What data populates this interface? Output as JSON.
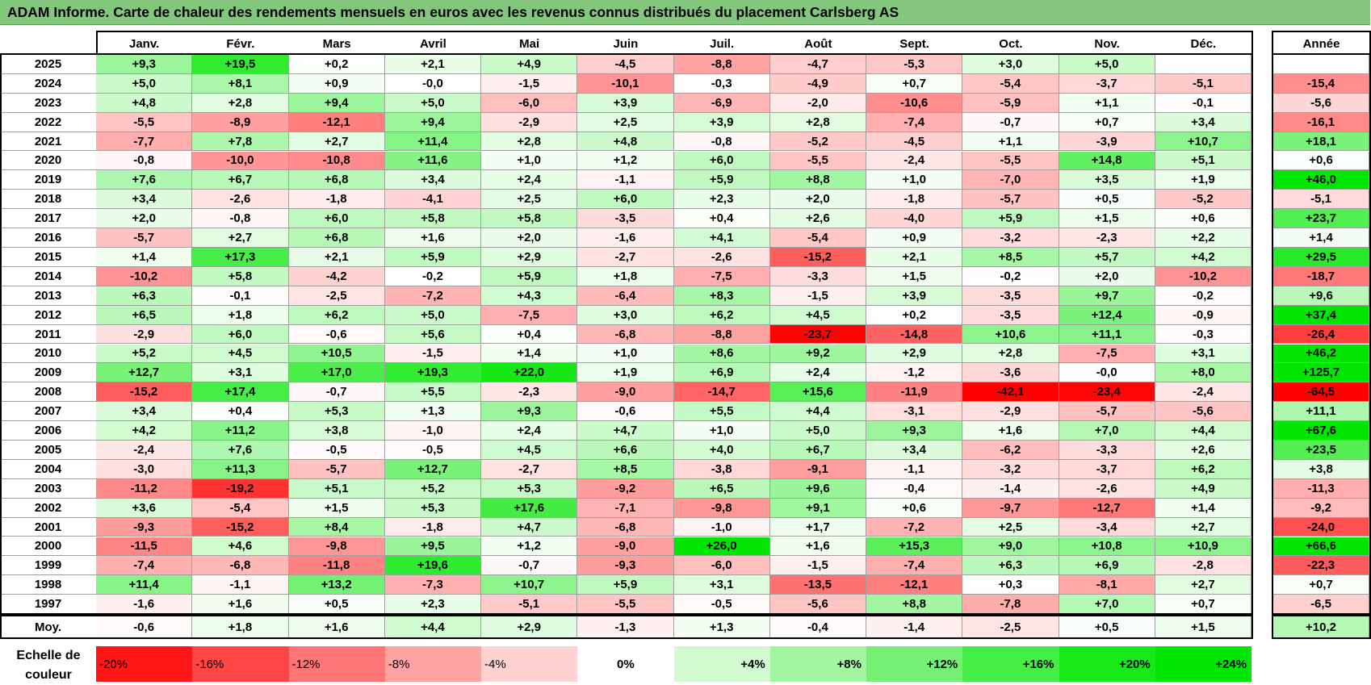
{
  "title": "ADAM Informe. Carte de chaleur des rendements mensuels en euros avec les revenus connus distribués du placement Carlsberg AS",
  "chart_data": {
    "type": "heatmap",
    "columns": [
      "Janv.",
      "Févr.",
      "Mars",
      "Avril",
      "Mai",
      "Juin",
      "Juil.",
      "Août",
      "Sept.",
      "Oct.",
      "Nov.",
      "Déc."
    ],
    "year_column": "Année",
    "rows": [
      {
        "year": "2025",
        "months": [
          "+9,3",
          "+19,5",
          "+0,2",
          "+2,1",
          "+4,9",
          "-4,5",
          "-8,8",
          "-4,7",
          "-5,3",
          "+3,0",
          "+5,0",
          ""
        ],
        "annual": ""
      },
      {
        "year": "2024",
        "months": [
          "+5,0",
          "+8,1",
          "+0,9",
          "-0,0",
          "-1,5",
          "-10,1",
          "-0,3",
          "-4,9",
          "+0,7",
          "-5,4",
          "-3,7",
          "-5,1"
        ],
        "annual": "-15,4"
      },
      {
        "year": "2023",
        "months": [
          "+4,8",
          "+2,8",
          "+9,4",
          "+5,0",
          "-6,0",
          "+3,9",
          "-6,9",
          "-2,0",
          "-10,6",
          "-5,9",
          "+1,1",
          "-0,1"
        ],
        "annual": "-5,6"
      },
      {
        "year": "2022",
        "months": [
          "-5,5",
          "-8,9",
          "-12,1",
          "+9,4",
          "-2,9",
          "+2,5",
          "+3,9",
          "+2,8",
          "-7,4",
          "-0,7",
          "+0,7",
          "+3,4"
        ],
        "annual": "-16,1"
      },
      {
        "year": "2021",
        "months": [
          "-7,7",
          "+7,8",
          "+2,7",
          "+11,4",
          "+2,8",
          "+4,8",
          "-0,8",
          "-5,2",
          "-4,5",
          "+1,1",
          "-3,9",
          "+10,7"
        ],
        "annual": "+18,1"
      },
      {
        "year": "2020",
        "months": [
          "-0,8",
          "-10,0",
          "-10,8",
          "+11,6",
          "+1,0",
          "+1,2",
          "+6,0",
          "-5,5",
          "-2,4",
          "-5,5",
          "+14,8",
          "+5,1"
        ],
        "annual": "+0,6"
      },
      {
        "year": "2019",
        "months": [
          "+7,6",
          "+6,7",
          "+6,8",
          "+3,4",
          "+2,4",
          "-1,1",
          "+5,9",
          "+8,8",
          "+1,0",
          "-7,0",
          "+3,5",
          "+1,9"
        ],
        "annual": "+46,0"
      },
      {
        "year": "2018",
        "months": [
          "+3,4",
          "-2,6",
          "-1,8",
          "-4,1",
          "+2,5",
          "+6,0",
          "+2,3",
          "+2,0",
          "-1,8",
          "-5,7",
          "+0,5",
          "-5,2"
        ],
        "annual": "-5,1"
      },
      {
        "year": "2017",
        "months": [
          "+2,0",
          "-0,8",
          "+6,0",
          "+5,8",
          "+5,8",
          "-3,5",
          "+0,4",
          "+2,6",
          "-4,0",
          "+5,9",
          "+1,5",
          "+0,6"
        ],
        "annual": "+23,7"
      },
      {
        "year": "2016",
        "months": [
          "-5,7",
          "+2,7",
          "+6,8",
          "+1,6",
          "+2,0",
          "-1,6",
          "+4,1",
          "-5,4",
          "+0,9",
          "-3,2",
          "-2,3",
          "+2,2"
        ],
        "annual": "+1,4"
      },
      {
        "year": "2015",
        "months": [
          "+1,4",
          "+17,3",
          "+2,1",
          "+5,9",
          "+2,9",
          "-2,7",
          "-2,6",
          "-15,2",
          "+2,1",
          "+8,5",
          "+5,7",
          "+4,2"
        ],
        "annual": "+29,5"
      },
      {
        "year": "2014",
        "months": [
          "-10,2",
          "+5,8",
          "-4,2",
          "-0,2",
          "+5,9",
          "+1,8",
          "-7,5",
          "-3,3",
          "+1,5",
          "-0,2",
          "+2,0",
          "-10,2"
        ],
        "annual": "-18,7"
      },
      {
        "year": "2013",
        "months": [
          "+6,3",
          "-0,1",
          "-2,5",
          "-7,2",
          "+4,3",
          "-6,4",
          "+8,3",
          "-1,5",
          "+3,9",
          "-3,5",
          "+9,7",
          "-0,2"
        ],
        "annual": "+9,6"
      },
      {
        "year": "2012",
        "months": [
          "+6,5",
          "+1,8",
          "+6,2",
          "+5,0",
          "-7,5",
          "+3,0",
          "+6,2",
          "+4,5",
          "+0,2",
          "-3,5",
          "+12,4",
          "-0,9"
        ],
        "annual": "+37,4"
      },
      {
        "year": "2011",
        "months": [
          "-2,9",
          "+6,0",
          "-0,6",
          "+5,6",
          "+0,4",
          "-6,8",
          "-8,8",
          "-23,7",
          "-14,8",
          "+10,6",
          "+11,1",
          "-0,3"
        ],
        "annual": "-26,4"
      },
      {
        "year": "2010",
        "months": [
          "+5,2",
          "+4,5",
          "+10,5",
          "-1,5",
          "+1,4",
          "+1,0",
          "+8,6",
          "+9,2",
          "+2,9",
          "+2,8",
          "-7,5",
          "+3,1"
        ],
        "annual": "+46,2"
      },
      {
        "year": "2009",
        "months": [
          "+12,7",
          "+3,1",
          "+17,0",
          "+19,3",
          "+22,0",
          "+1,9",
          "+6,9",
          "+2,4",
          "-1,2",
          "-3,6",
          "-0,0",
          "+8,0"
        ],
        "annual": "+125,7"
      },
      {
        "year": "2008",
        "months": [
          "-15,2",
          "+17,4",
          "-0,7",
          "+5,5",
          "-2,3",
          "-9,0",
          "-14,7",
          "+15,6",
          "-11,9",
          "-42,1",
          "-23,4",
          "-2,4"
        ],
        "annual": "-64,5"
      },
      {
        "year": "2007",
        "months": [
          "+3,4",
          "+0,4",
          "+5,3",
          "+1,3",
          "+9,3",
          "-0,6",
          "+5,5",
          "+4,4",
          "-3,1",
          "-2,9",
          "-5,7",
          "-5,6"
        ],
        "annual": "+11,1"
      },
      {
        "year": "2006",
        "months": [
          "+4,2",
          "+11,2",
          "+3,8",
          "-1,0",
          "+2,4",
          "+4,7",
          "+1,0",
          "+5,0",
          "+9,3",
          "+1,6",
          "+7,0",
          "+4,4"
        ],
        "annual": "+67,6"
      },
      {
        "year": "2005",
        "months": [
          "-2,4",
          "+7,6",
          "-0,5",
          "-0,5",
          "+4,5",
          "+6,6",
          "+4,0",
          "+6,7",
          "+3,4",
          "-6,2",
          "-3,3",
          "+2,6"
        ],
        "annual": "+23,5"
      },
      {
        "year": "2004",
        "months": [
          "-3,0",
          "+11,3",
          "-5,7",
          "+12,7",
          "-2,7",
          "+8,5",
          "-3,8",
          "-9,1",
          "-1,1",
          "-3,2",
          "-3,7",
          "+6,2"
        ],
        "annual": "+3,8"
      },
      {
        "year": "2003",
        "months": [
          "-11,2",
          "-19,2",
          "+5,1",
          "+5,2",
          "+5,3",
          "-9,2",
          "+6,5",
          "+9,6",
          "-0,4",
          "-1,4",
          "-2,6",
          "+4,9"
        ],
        "annual": "-11,3"
      },
      {
        "year": "2002",
        "months": [
          "+3,6",
          "-5,4",
          "+1,5",
          "+5,3",
          "+17,6",
          "-7,1",
          "-9,8",
          "+9,1",
          "+0,6",
          "-9,7",
          "-12,7",
          "+1,4"
        ],
        "annual": "-9,2"
      },
      {
        "year": "2001",
        "months": [
          "-9,3",
          "-15,2",
          "+8,4",
          "-1,8",
          "+4,7",
          "-6,8",
          "-1,0",
          "+1,7",
          "-7,2",
          "+2,5",
          "-3,4",
          "+2,7"
        ],
        "annual": "-24,0"
      },
      {
        "year": "2000",
        "months": [
          "-11,5",
          "+4,6",
          "-9,8",
          "+9,5",
          "+1,2",
          "-9,0",
          "+26,0",
          "+1,6",
          "+15,3",
          "+9,0",
          "+10,8",
          "+10,9"
        ],
        "annual": "+66,6"
      },
      {
        "year": "1999",
        "months": [
          "-7,4",
          "-6,8",
          "-11,8",
          "+19,6",
          "-0,7",
          "-9,3",
          "-6,0",
          "-1,5",
          "-7,4",
          "+6,3",
          "+6,9",
          "-2,8"
        ],
        "annual": "-22,3"
      },
      {
        "year": "1998",
        "months": [
          "+11,4",
          "-1,1",
          "+13,2",
          "-7,3",
          "+10,7",
          "+5,9",
          "+3,1",
          "-13,5",
          "-12,1",
          "+0,3",
          "-8,1",
          "+2,7"
        ],
        "annual": "+0,7"
      },
      {
        "year": "1997",
        "months": [
          "-1,6",
          "+1,6",
          "+0,5",
          "+2,3",
          "-5,1",
          "-5,5",
          "-0,5",
          "-5,6",
          "+8,8",
          "-7,8",
          "+7,0",
          "+0,7"
        ],
        "annual": "-6,5"
      }
    ],
    "average": {
      "label": "Moy.",
      "months": [
        "-0,6",
        "+1,8",
        "+1,6",
        "+4,4",
        "+2,9",
        "-1,3",
        "+1,3",
        "-0,4",
        "-1,4",
        "-2,5",
        "+0,5",
        "+1,5"
      ],
      "annual": "+10,2"
    },
    "scale": {
      "label": "Echelle de couleur",
      "steps": [
        "-20%",
        "-16%",
        "-12%",
        "-8%",
        "-4%",
        "0%",
        "+4%",
        "+8%",
        "+12%",
        "+16%",
        "+20%",
        "+24%"
      ]
    },
    "colors": {
      "negative_max": "#ff0000",
      "positive_max": "#00e600",
      "neutral": "#ffffff",
      "title_bar": "#82c77c"
    }
  }
}
